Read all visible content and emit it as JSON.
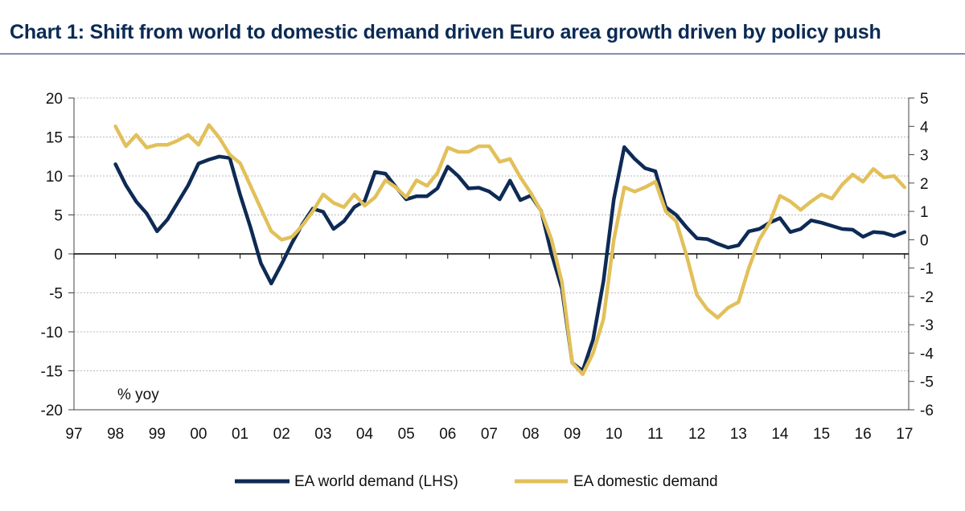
{
  "title": "Chart 1: Shift from world to domestic demand driven Euro area growth driven by policy push",
  "colors": {
    "world": "#0e2a55",
    "domestic": "#e2c05a",
    "grid": "#b9b9b9",
    "rule": "#7f8fb3",
    "title": "#0b2a54"
  },
  "chart_data": {
    "type": "line",
    "title": "Chart 1: Shift from world to domestic demand driven Euro area growth driven by policy push",
    "annotation": "% yoy",
    "x_tick_labels": [
      "97",
      "98",
      "99",
      "00",
      "01",
      "02",
      "03",
      "04",
      "05",
      "06",
      "07",
      "08",
      "09",
      "10",
      "11",
      "12",
      "13",
      "14",
      "15",
      "16",
      "17"
    ],
    "xlim": [
      1997,
      2017.1
    ],
    "y_left": {
      "lim": [
        -20,
        20
      ],
      "ticks": [
        20,
        15,
        10,
        5,
        0,
        -5,
        -10,
        -15,
        -20
      ]
    },
    "y_right": {
      "lim": [
        -6,
        5
      ],
      "ticks": [
        5,
        4,
        3,
        2,
        1,
        0,
        -1,
        -2,
        -3,
        -4,
        -5,
        -6
      ]
    },
    "grid": true,
    "legend_position": "bottom",
    "series": [
      {
        "name": "EA world demand (LHS)",
        "axis": "left",
        "x": [
          1998.0,
          1998.25,
          1998.5,
          1998.75,
          1999.0,
          1999.25,
          1999.5,
          1999.75,
          2000.0,
          2000.25,
          2000.5,
          2000.75,
          2001.0,
          2001.25,
          2001.5,
          2001.75,
          2002.0,
          2002.25,
          2002.5,
          2002.75,
          2003.0,
          2003.25,
          2003.5,
          2003.75,
          2004.0,
          2004.25,
          2004.5,
          2004.75,
          2005.0,
          2005.25,
          2005.5,
          2005.75,
          2006.0,
          2006.25,
          2006.5,
          2006.75,
          2007.0,
          2007.25,
          2007.5,
          2007.75,
          2008.0,
          2008.25,
          2008.5,
          2008.75,
          2009.0,
          2009.25,
          2009.5,
          2009.75,
          2010.0,
          2010.25,
          2010.5,
          2010.75,
          2011.0,
          2011.25,
          2011.5,
          2011.75,
          2012.0,
          2012.25,
          2012.5,
          2012.75,
          2013.0,
          2013.25,
          2013.5,
          2013.75,
          2014.0,
          2014.25,
          2014.5,
          2014.75,
          2015.0,
          2015.25,
          2015.5,
          2015.75,
          2016.0,
          2016.25,
          2016.5,
          2016.75,
          2017.0
        ],
        "values": [
          11.5,
          8.8,
          6.7,
          5.2,
          2.9,
          4.4,
          6.6,
          8.8,
          11.6,
          12.1,
          12.5,
          12.3,
          7.6,
          3.4,
          -1.2,
          -3.8,
          -1.3,
          1.4,
          3.8,
          5.8,
          5.4,
          3.2,
          4.2,
          6.0,
          6.8,
          10.5,
          10.3,
          8.6,
          7.0,
          7.4,
          7.4,
          8.4,
          11.2,
          10.0,
          8.4,
          8.5,
          8.0,
          7.0,
          9.4,
          6.9,
          7.5,
          5.5,
          0.0,
          -4.5,
          -14.0,
          -15.0,
          -11.0,
          -3.5,
          7.0,
          13.7,
          12.2,
          11.0,
          10.6,
          6.0,
          5.0,
          3.4,
          2.0,
          1.9,
          1.3,
          0.8,
          1.1,
          2.9,
          3.2,
          4.0,
          4.6,
          2.8,
          3.2,
          4.3,
          4.0,
          3.6,
          3.2,
          3.1,
          2.2,
          2.8,
          2.7,
          2.3,
          2.8
        ]
      },
      {
        "name": "EA domestic demand",
        "axis": "right",
        "x": [
          1998.0,
          1998.25,
          1998.5,
          1998.75,
          1999.0,
          1999.25,
          1999.5,
          1999.75,
          2000.0,
          2000.25,
          2000.5,
          2000.75,
          2001.0,
          2001.25,
          2001.5,
          2001.75,
          2002.0,
          2002.25,
          2002.5,
          2002.75,
          2003.0,
          2003.25,
          2003.5,
          2003.75,
          2004.0,
          2004.25,
          2004.5,
          2004.75,
          2005.0,
          2005.25,
          2005.5,
          2005.75,
          2006.0,
          2006.25,
          2006.5,
          2006.75,
          2007.0,
          2007.25,
          2007.5,
          2007.75,
          2008.0,
          2008.25,
          2008.5,
          2008.75,
          2009.0,
          2009.25,
          2009.5,
          2009.75,
          2010.0,
          2010.25,
          2010.5,
          2010.75,
          2011.0,
          2011.25,
          2011.5,
          2011.75,
          2012.0,
          2012.25,
          2012.5,
          2012.75,
          2013.0,
          2013.25,
          2013.5,
          2013.75,
          2014.0,
          2014.25,
          2014.5,
          2014.75,
          2015.0,
          2015.25,
          2015.5,
          2015.75,
          2016.0,
          2016.25,
          2016.5,
          2016.75,
          2017.0
        ],
        "values": [
          4.0,
          3.3,
          3.7,
          3.25,
          3.35,
          3.35,
          3.5,
          3.7,
          3.35,
          4.05,
          3.6,
          3.0,
          2.7,
          1.9,
          1.1,
          0.3,
          0.0,
          0.1,
          0.5,
          1.0,
          1.6,
          1.3,
          1.15,
          1.6,
          1.2,
          1.5,
          2.1,
          1.85,
          1.5,
          2.1,
          1.9,
          2.35,
          3.25,
          3.1,
          3.1,
          3.3,
          3.3,
          2.75,
          2.85,
          2.2,
          1.65,
          1.0,
          0.0,
          -1.5,
          -4.35,
          -4.75,
          -4.0,
          -2.8,
          0.0,
          1.85,
          1.7,
          1.85,
          2.05,
          1.0,
          0.65,
          -0.55,
          -1.95,
          -2.45,
          -2.75,
          -2.4,
          -2.2,
          -1.0,
          0.0,
          0.6,
          1.55,
          1.35,
          1.05,
          1.35,
          1.6,
          1.45,
          1.95,
          2.3,
          2.05,
          2.5,
          2.2,
          2.25,
          1.85
        ]
      }
    ]
  }
}
